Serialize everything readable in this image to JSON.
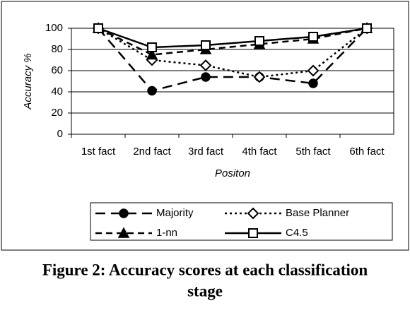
{
  "chart_data": {
    "type": "line",
    "categories": [
      "1st fact",
      "2nd fact",
      "3rd fact",
      "4th fact",
      "5th fact",
      "6th fact"
    ],
    "x_label": "Positon",
    "y_label": "Accuracy %",
    "ylim": [
      0,
      100
    ],
    "yticks": [
      0,
      20,
      40,
      60,
      80,
      100
    ],
    "grid": true,
    "series": [
      {
        "name": "Majority",
        "color": "#000000",
        "dash": "14 8",
        "marker": "circle",
        "values": [
          100,
          41,
          54,
          54,
          48,
          100
        ]
      },
      {
        "name": "Base Planner",
        "color": "#000000",
        "dash": "3 4",
        "marker": "diamond",
        "values": [
          100,
          70,
          65,
          54,
          60,
          100
        ]
      },
      {
        "name": "1-nn",
        "color": "#000000",
        "dash": "9 6",
        "marker": "triangle",
        "values": [
          100,
          75,
          80,
          85,
          90,
          100
        ]
      },
      {
        "name": "C4.5",
        "color": "#000000",
        "dash": "",
        "marker": "square",
        "values": [
          100,
          82,
          84,
          88,
          92,
          100
        ]
      }
    ],
    "caption": [
      "Figure 2: Accuracy scores at each classification",
      "stage"
    ]
  }
}
